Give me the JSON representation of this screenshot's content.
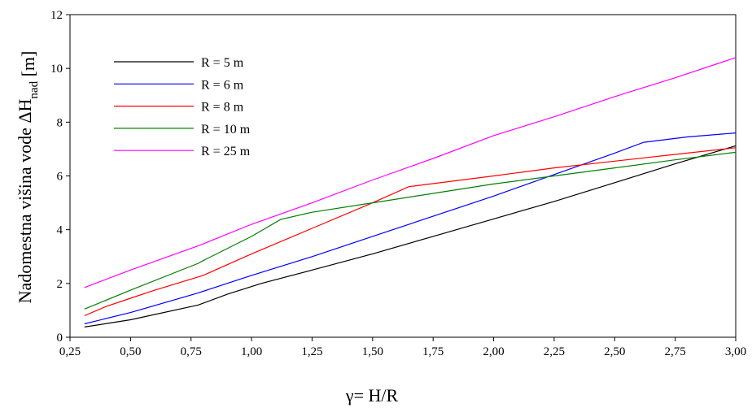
{
  "chart_data": {
    "type": "line",
    "xlabel": "γ= H/R",
    "ylabel": "Nadomestna višina vode ΔH",
    "ylabel_subscript": "nad",
    "ylabel_unit": " [m]",
    "xlim": [
      0.25,
      3.0
    ],
    "ylim": [
      0,
      12
    ],
    "xticks": [
      0.25,
      0.5,
      0.75,
      1.0,
      1.25,
      1.5,
      1.75,
      2.0,
      2.25,
      2.5,
      2.75,
      3.0
    ],
    "xtick_labels": [
      "0,25",
      "0,50",
      "0,75",
      "1,00",
      "1,25",
      "1,50",
      "1,75",
      "2,00",
      "2,25",
      "2,50",
      "2,75",
      "3,00"
    ],
    "yticks": [
      0,
      2,
      4,
      6,
      8,
      10,
      12
    ],
    "ytick_labels": [
      "0",
      "2",
      "4",
      "6",
      "8",
      "10",
      "12"
    ],
    "grid": false,
    "legend_position": "top-left",
    "series": [
      {
        "name": "R = 5 m",
        "color": "#000000",
        "x": [
          0.31,
          0.5,
          0.78,
          0.9,
          1.04,
          1.25,
          1.5,
          1.75,
          2.0,
          2.25,
          2.5,
          2.75,
          3.0
        ],
        "y": [
          0.38,
          0.65,
          1.2,
          1.6,
          2.0,
          2.5,
          3.1,
          3.75,
          4.4,
          5.05,
          5.75,
          6.45,
          7.12
        ]
      },
      {
        "name": "R = 6 m",
        "color": "#0000ff",
        "x": [
          0.31,
          0.5,
          0.78,
          1.0,
          1.25,
          1.5,
          1.75,
          2.0,
          2.25,
          2.5,
          2.62,
          2.8,
          3.0
        ],
        "y": [
          0.5,
          0.92,
          1.65,
          2.3,
          3.0,
          3.75,
          4.5,
          5.25,
          6.05,
          6.85,
          7.25,
          7.45,
          7.6
        ]
      },
      {
        "name": "R = 8 m",
        "color": "#ff0000",
        "x": [
          0.31,
          0.4,
          0.5,
          0.6,
          0.8,
          1.0,
          1.25,
          1.5,
          1.65,
          2.0,
          2.25,
          2.5,
          2.75,
          3.0
        ],
        "y": [
          0.8,
          1.15,
          1.45,
          1.75,
          2.3,
          3.1,
          4.05,
          5.0,
          5.6,
          6.0,
          6.3,
          6.55,
          6.8,
          7.05
        ]
      },
      {
        "name": "R = 10 m",
        "color": "#008000",
        "x": [
          0.31,
          0.5,
          0.78,
          0.8,
          1.0,
          1.12,
          1.25,
          1.5,
          1.75,
          2.0,
          2.25,
          2.5,
          2.75,
          3.0
        ],
        "y": [
          1.05,
          1.75,
          2.75,
          2.85,
          3.75,
          4.38,
          4.65,
          5.0,
          5.35,
          5.7,
          6.0,
          6.3,
          6.6,
          6.88
        ]
      },
      {
        "name": "R = 25 m",
        "color": "#ff00ff",
        "x": [
          0.31,
          0.5,
          0.78,
          1.0,
          1.25,
          1.5,
          1.75,
          2.0,
          2.25,
          2.5,
          2.75,
          3.0
        ],
        "y": [
          1.85,
          2.5,
          3.4,
          4.2,
          5.0,
          5.85,
          6.65,
          7.5,
          8.2,
          8.95,
          9.65,
          10.4
        ]
      }
    ]
  }
}
